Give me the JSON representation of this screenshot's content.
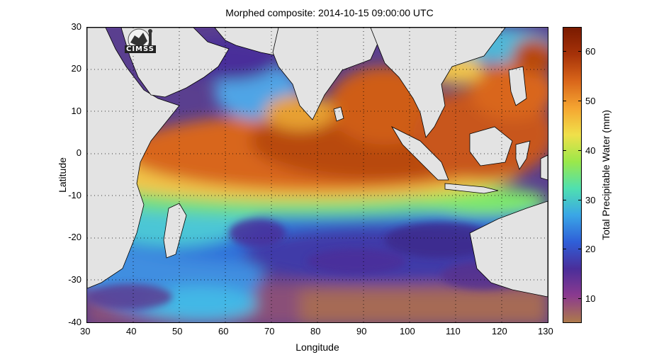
{
  "title": "Morphed composite: 2014-10-15 09:00:00 UTC",
  "axes": {
    "xlabel": "Longitude",
    "ylabel": "Latitude",
    "xticks": [
      "30",
      "40",
      "50",
      "60",
      "70",
      "80",
      "90",
      "100",
      "110",
      "120",
      "130"
    ],
    "yticks": [
      "30",
      "20",
      "10",
      "0",
      "-10",
      "-20",
      "-30",
      "-40"
    ],
    "xlim": [
      30,
      130
    ],
    "ylim": [
      -40,
      30
    ]
  },
  "colorbar": {
    "label": "Total Precipitable Water (mm)",
    "ticks": [
      "60",
      "50",
      "40",
      "30",
      "20",
      "10"
    ],
    "range": [
      5,
      65
    ],
    "stops": [
      "#ad7a4b",
      "#8b3a8f",
      "#4a2e9a",
      "#2f5fd8",
      "#3aa6e6",
      "#4fe0b0",
      "#9be84a",
      "#f0e04a",
      "#f5a531",
      "#d9661a",
      "#a63209",
      "#7a1a00"
    ]
  },
  "logo": {
    "text": "CIMSS"
  },
  "map": {
    "land_color": "#e3e3e3",
    "grid": "dotted",
    "region": "Indian Ocean / Maritime Continent"
  }
}
